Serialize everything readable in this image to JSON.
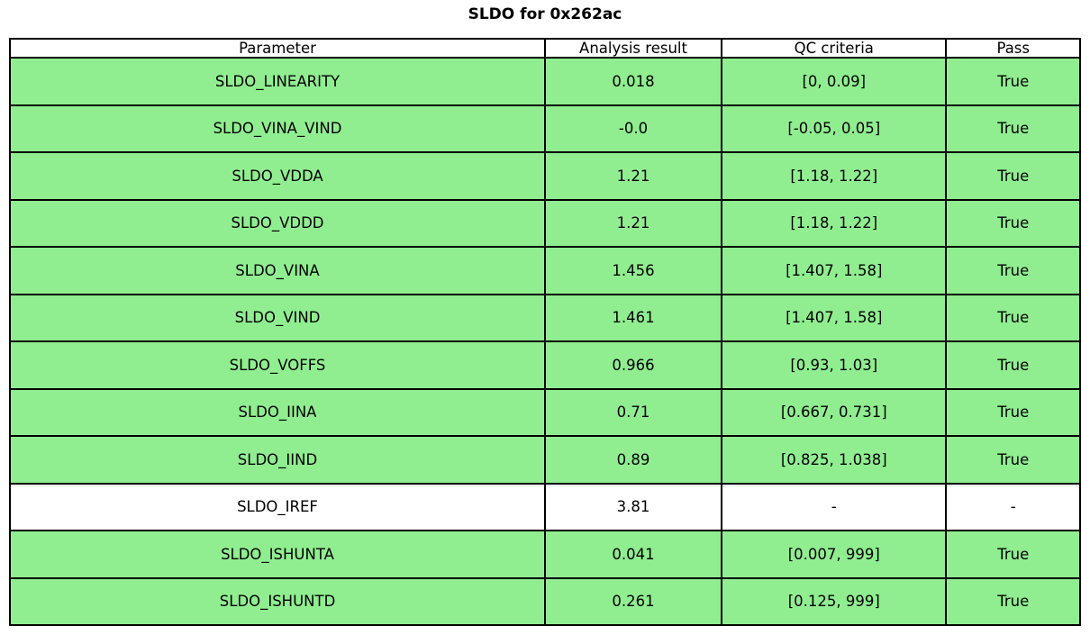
{
  "title": "SLDO for 0x262ac",
  "colors": {
    "pass_green": "#90EE90",
    "neutral_white": "#FFFFFF",
    "border_black": "#000000"
  },
  "chart_data": {
    "type": "table",
    "title": "SLDO for 0x262ac",
    "columns": [
      "Parameter",
      "Analysis result",
      "QC criteria",
      "Pass"
    ],
    "rows": [
      {
        "parameter": "SLDO_LINEARITY",
        "result": "0.018",
        "criteria": "[0, 0.09]",
        "pass": "True",
        "highlight": true
      },
      {
        "parameter": "SLDO_VINA_VIND",
        "result": "-0.0",
        "criteria": "[-0.05, 0.05]",
        "pass": "True",
        "highlight": true
      },
      {
        "parameter": "SLDO_VDDA",
        "result": "1.21",
        "criteria": "[1.18, 1.22]",
        "pass": "True",
        "highlight": true
      },
      {
        "parameter": "SLDO_VDDD",
        "result": "1.21",
        "criteria": "[1.18, 1.22]",
        "pass": "True",
        "highlight": true
      },
      {
        "parameter": "SLDO_VINA",
        "result": "1.456",
        "criteria": "[1.407, 1.58]",
        "pass": "True",
        "highlight": true
      },
      {
        "parameter": "SLDO_VIND",
        "result": "1.461",
        "criteria": "[1.407, 1.58]",
        "pass": "True",
        "highlight": true
      },
      {
        "parameter": "SLDO_VOFFS",
        "result": "0.966",
        "criteria": "[0.93, 1.03]",
        "pass": "True",
        "highlight": true
      },
      {
        "parameter": "SLDO_IINA",
        "result": "0.71",
        "criteria": "[0.667, 0.731]",
        "pass": "True",
        "highlight": true
      },
      {
        "parameter": "SLDO_IIND",
        "result": "0.89",
        "criteria": "[0.825, 1.038]",
        "pass": "True",
        "highlight": true
      },
      {
        "parameter": "SLDO_IREF",
        "result": "3.81",
        "criteria": "-",
        "pass": "-",
        "highlight": false
      },
      {
        "parameter": "SLDO_ISHUNTA",
        "result": "0.041",
        "criteria": "[0.007, 999]",
        "pass": "True",
        "highlight": true
      },
      {
        "parameter": "SLDO_ISHUNTD",
        "result": "0.261",
        "criteria": "[0.125, 999]",
        "pass": "True",
        "highlight": true
      }
    ]
  }
}
